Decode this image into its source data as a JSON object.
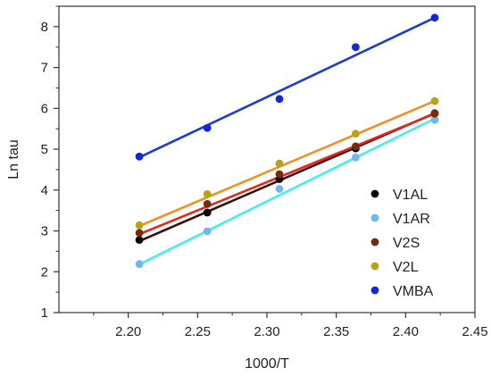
{
  "chart_data": {
    "type": "scatter",
    "xlabel": "1000/T",
    "ylabel": "Ln tau",
    "xlim": [
      2.15,
      2.45
    ],
    "ylim": [
      1,
      8.5
    ],
    "xticks": [
      "2.20",
      "2.25",
      "2.30",
      "2.35",
      "2.40",
      "2.45"
    ],
    "xtick_values": [
      2.2,
      2.25,
      2.3,
      2.35,
      2.4,
      2.45
    ],
    "yticks": [
      "1",
      "2",
      "3",
      "4",
      "5",
      "6",
      "7",
      "8"
    ],
    "ytick_values": [
      1,
      2,
      3,
      4,
      5,
      6,
      7,
      8
    ],
    "x": [
      2.208,
      2.257,
      2.309,
      2.364,
      2.421
    ],
    "legend_position": "bottom-right",
    "grid": false,
    "series": [
      {
        "name": "V1AL",
        "color": "#000000",
        "y": [
          2.78,
          3.45,
          4.27,
          5.02,
          5.88
        ],
        "fit": [
          2.75,
          5.88
        ]
      },
      {
        "name": "V1AR",
        "color": "#6fb7ee",
        "y": [
          2.19,
          2.99,
          4.03,
          4.8,
          5.72
        ],
        "fit": [
          2.18,
          5.75
        ]
      },
      {
        "name": "V2S",
        "color": "#7a2a0c",
        "y": [
          2.95,
          3.66,
          4.39,
          5.07,
          5.87
        ],
        "fit": [
          2.92,
          5.87
        ]
      },
      {
        "name": "V2L",
        "color": "#b7a21a",
        "y": [
          3.14,
          3.9,
          4.65,
          5.38,
          6.18
        ],
        "fit": [
          3.12,
          6.18
        ]
      },
      {
        "name": "VMBA",
        "color": "#1525d8",
        "y": [
          4.82,
          5.52,
          6.23,
          7.5,
          8.22
        ],
        "fit": [
          4.8,
          8.22
        ]
      }
    ],
    "fit_lines": [
      {
        "series": "V1AL",
        "color": "#3a0d0d"
      },
      {
        "series": "V1AR",
        "color": "#3ef0ef"
      },
      {
        "series": "V2S",
        "color": "#e6251b"
      },
      {
        "series": "V2L",
        "color": "#f5901e"
      },
      {
        "series": "VMBA",
        "color": "#1b3ad6"
      }
    ],
    "legend_markers": [
      {
        "series": "V1AL",
        "color": "#000000"
      },
      {
        "series": "V1AR",
        "color": "#6fb7ee"
      },
      {
        "series": "V2S",
        "color": "#7a2a0c"
      },
      {
        "series": "V2L",
        "color": "#b7a21a"
      },
      {
        "series": "VMBA",
        "color": "#1525d8"
      }
    ]
  }
}
